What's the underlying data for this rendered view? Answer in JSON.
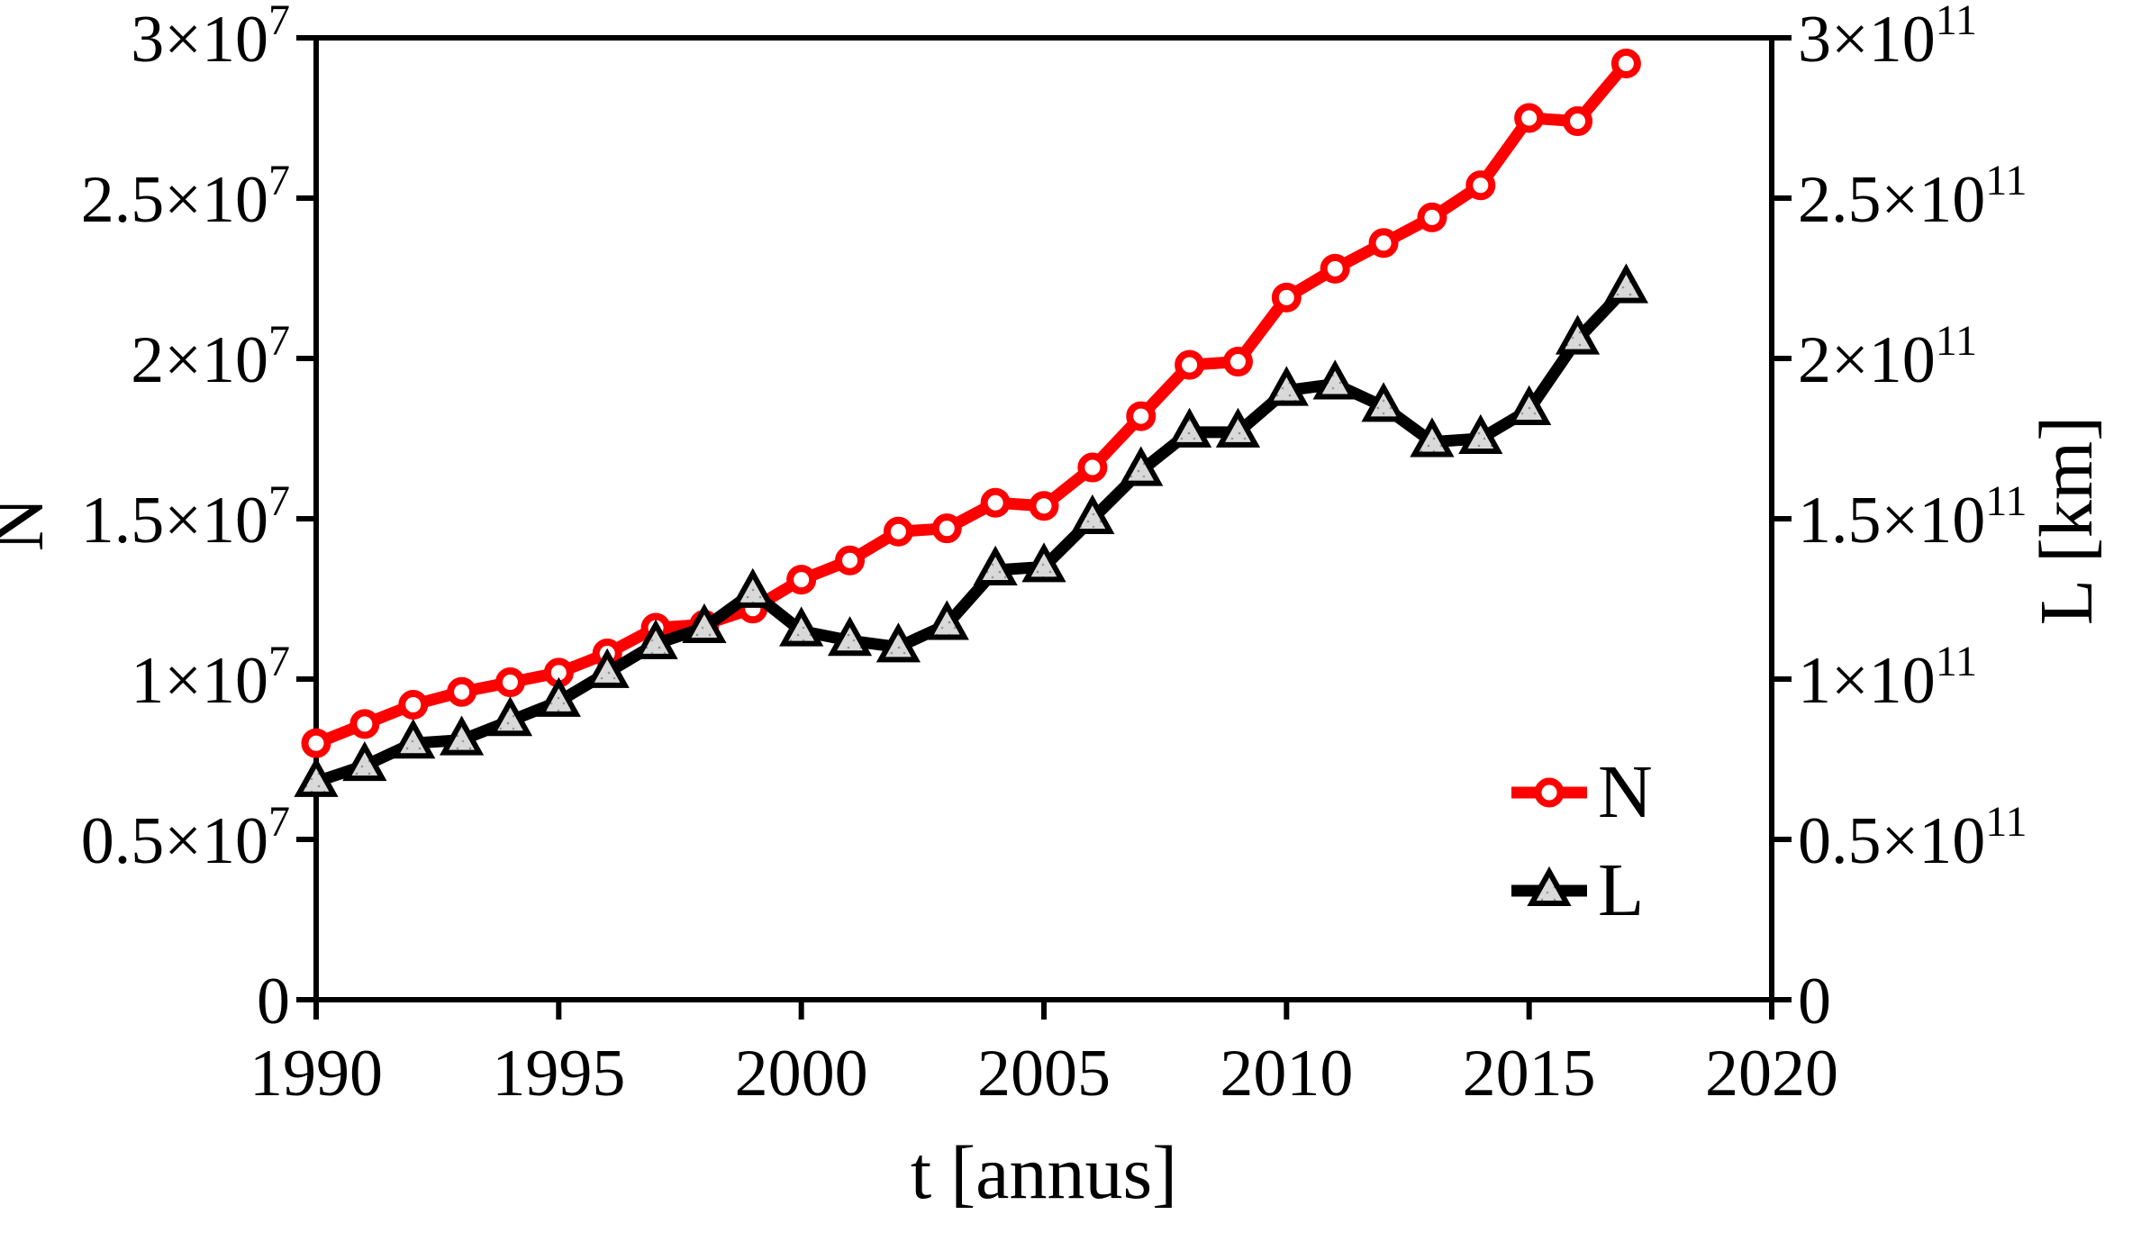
{
  "chart_data": {
    "type": "line",
    "title": "",
    "xlabel": "t [annus]",
    "x_range": [
      1990,
      2020
    ],
    "x_ticks": [
      1990,
      1995,
      2000,
      2005,
      2010,
      2015,
      2020
    ],
    "grid": false,
    "legend_position": "inside-right",
    "left_axis": {
      "label": "N",
      "lim": [
        0,
        30000000.0
      ],
      "ticks": [
        {
          "value": 0,
          "label": "0"
        },
        {
          "value": 5000000.0,
          "label": "0.5×10^7"
        },
        {
          "value": 10000000.0,
          "label": "1×10^7"
        },
        {
          "value": 15000000.0,
          "label": "1.5×10^7"
        },
        {
          "value": 20000000.0,
          "label": "2×10^7"
        },
        {
          "value": 25000000.0,
          "label": "2.5×10^7"
        },
        {
          "value": 30000000.0,
          "label": "3×10^7"
        }
      ]
    },
    "right_axis": {
      "label": "L [km]",
      "lim": [
        0,
        300000000000.0
      ],
      "ticks": [
        {
          "value": 0,
          "label": "0"
        },
        {
          "value": 50000000000.0,
          "label": "0.5×10^11"
        },
        {
          "value": 100000000000.0,
          "label": "1×10^11"
        },
        {
          "value": 150000000000.0,
          "label": "1.5×10^11"
        },
        {
          "value": 200000000000.0,
          "label": "2×10^11"
        },
        {
          "value": 250000000000.0,
          "label": "2.5×10^11"
        },
        {
          "value": 300000000000.0,
          "label": "3×10^11"
        }
      ]
    },
    "years": [
      1990,
      1991,
      1992,
      1993,
      1994,
      1995,
      1996,
      1997,
      1998,
      1999,
      2000,
      2001,
      2002,
      2003,
      2004,
      2005,
      2006,
      2007,
      2008,
      2009,
      2010,
      2011,
      2012,
      2013,
      2014,
      2015,
      2016,
      2017
    ],
    "series": [
      {
        "name": "N",
        "axis": "left",
        "color": "#ff0000",
        "marker": "circle",
        "marker_fill": "#ffffff",
        "values": [
          8000000.0,
          8600000.0,
          9200000.0,
          9600000.0,
          9900000.0,
          10200000.0,
          10800000.0,
          11600000.0,
          11700000.0,
          12200000.0,
          13100000.0,
          13700000.0,
          14600000.0,
          14700000.0,
          15500000.0,
          15400000.0,
          16600000.0,
          18200000.0,
          19800000.0,
          19900000.0,
          21900000.0,
          22800000.0,
          23600000.0,
          24400000.0,
          25400000.0,
          27500000.0,
          27400000.0,
          29200000.0
        ]
      },
      {
        "name": "L",
        "axis": "right",
        "color": "#000000",
        "marker": "triangle",
        "marker_fill": "#d9d9d9",
        "values": [
          68000000000.0,
          73000000000.0,
          80000000000.0,
          81000000000.0,
          87000000000.0,
          93000000000.0,
          102000000000.0,
          111000000000.0,
          116000000000.0,
          127000000000.0,
          115000000000.0,
          112000000000.0,
          110000000000.0,
          117000000000.0,
          134000000000.0,
          135000000000.0,
          150000000000.0,
          165000000000.0,
          177000000000.0,
          177000000000.0,
          190000000000.0,
          192000000000.0,
          185000000000.0,
          174000000000.0,
          175000000000.0,
          184000000000.0,
          206000000000.0,
          222000000000.0
        ]
      }
    ],
    "legend": {
      "items": [
        {
          "label": "N"
        },
        {
          "label": "L"
        }
      ]
    }
  }
}
